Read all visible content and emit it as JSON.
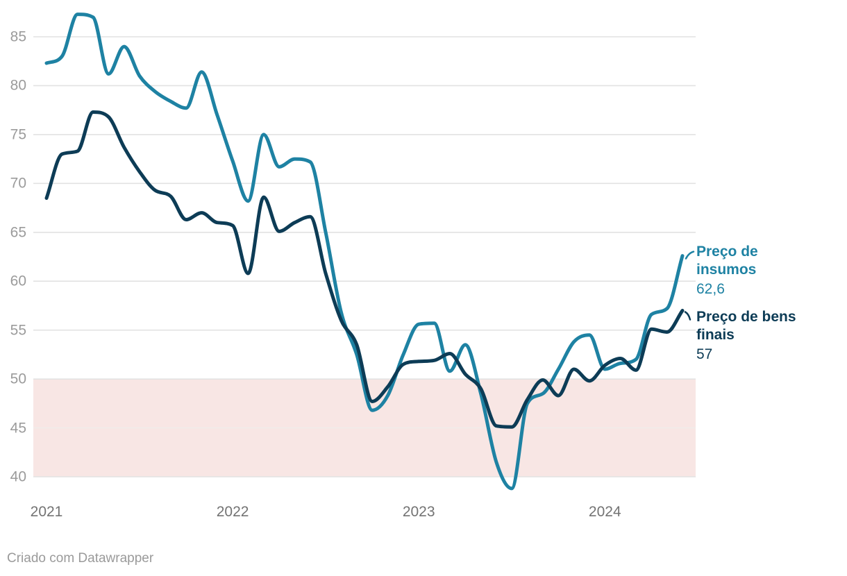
{
  "chart_data": {
    "type": "line",
    "x": [
      "2021-01",
      "2021-02",
      "2021-03",
      "2021-04",
      "2021-05",
      "2021-06",
      "2021-07",
      "2021-08",
      "2021-09",
      "2021-10",
      "2021-11",
      "2021-12",
      "2022-01",
      "2022-02",
      "2022-03",
      "2022-04",
      "2022-05",
      "2022-06",
      "2022-07",
      "2022-08",
      "2022-09",
      "2022-10",
      "2022-11",
      "2022-12",
      "2023-01",
      "2023-02",
      "2023-03",
      "2023-04",
      "2023-05",
      "2023-06",
      "2023-07",
      "2023-08",
      "2023-09",
      "2023-10",
      "2023-11",
      "2023-12",
      "2024-01",
      "2024-02",
      "2024-03",
      "2024-04",
      "2024-05",
      "2024-06"
    ],
    "series": [
      {
        "name": "Preço de insumos",
        "value_label": "62,6",
        "color": "#1e82a3",
        "values": [
          82.3,
          83.0,
          87.3,
          87.0,
          81.2,
          84.0,
          81.0,
          79.4,
          78.4,
          77.7,
          81.4,
          77.0,
          72.3,
          68.2,
          75.0,
          71.7,
          72.5,
          72.2,
          65.0,
          56.8,
          52.5,
          46.8,
          48.3,
          52.5,
          55.6,
          55.7,
          50.8,
          53.5,
          48.5,
          41.5,
          38.8,
          47.5,
          48.5,
          51.0,
          53.8,
          54.5,
          51.0,
          51.6,
          52.0,
          56.6,
          57.2,
          62.6
        ]
      },
      {
        "name": "Preço de bens finais",
        "value_label": "57",
        "color": "#0d3c56",
        "values": [
          68.5,
          73.0,
          73.3,
          77.3,
          76.8,
          73.7,
          71.2,
          69.3,
          68.7,
          66.3,
          67.0,
          66.0,
          65.7,
          60.8,
          68.6,
          65.1,
          66.0,
          66.6,
          60.8,
          56.0,
          53.5,
          47.7,
          49.2,
          51.5,
          51.8,
          51.9,
          52.6,
          50.5,
          49.0,
          45.2,
          45.1,
          47.9,
          49.9,
          48.3,
          51.0,
          49.8,
          51.4,
          52.1,
          50.9,
          55.1,
          54.8,
          57.0
        ]
      }
    ],
    "title": "",
    "xlabel": "",
    "ylabel": "",
    "ylim": [
      38.5,
      88
    ],
    "yticks": [
      85,
      80,
      75,
      70,
      65,
      60,
      55,
      50,
      45,
      40
    ],
    "year_ticks": [
      {
        "label": "2021",
        "month_index": 0
      },
      {
        "label": "2022",
        "month_index": 12
      },
      {
        "label": "2023",
        "month_index": 24
      },
      {
        "label": "2024",
        "month_index": 36
      }
    ],
    "shaded_band": {
      "from": 40,
      "to": 50,
      "color": "#f8e6e4"
    },
    "grid": "horizontal",
    "legend_position": "right-end-labels"
  },
  "colors": {
    "background": "#ffffff",
    "gridline": "#e2e2e2",
    "gridline_in_band": "#f0ece9",
    "ytick_text": "#9b9b9b",
    "xtick_text": "#737373",
    "footer_text": "#9a9a9a"
  },
  "footer": {
    "credit": "Criado com Datawrapper"
  }
}
